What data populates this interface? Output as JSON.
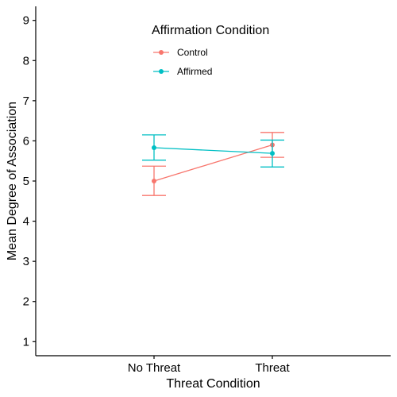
{
  "chart_data": {
    "type": "line",
    "title": "",
    "xlabel": "Threat Condition",
    "ylabel": "Mean Degree of Association",
    "categories": [
      "No Threat",
      "Threat"
    ],
    "ylim": [
      0.65,
      9.35
    ],
    "yticks": [
      "1",
      "2",
      "3",
      "4",
      "5",
      "6",
      "7",
      "8",
      "9"
    ],
    "grid": false,
    "legend": {
      "title": "Affirmation Condition",
      "position": "top-center-inside"
    },
    "series": [
      {
        "name": "Control",
        "color": "#F8766D",
        "values": [
          5.0,
          5.9
        ],
        "error_low": [
          4.64,
          5.59
        ],
        "error_high": [
          5.37,
          6.21
        ]
      },
      {
        "name": "Affirmed",
        "color": "#00BFC4",
        "values": [
          5.83,
          5.69
        ],
        "error_low": [
          5.52,
          5.35
        ],
        "error_high": [
          6.15,
          6.02
        ]
      }
    ]
  }
}
